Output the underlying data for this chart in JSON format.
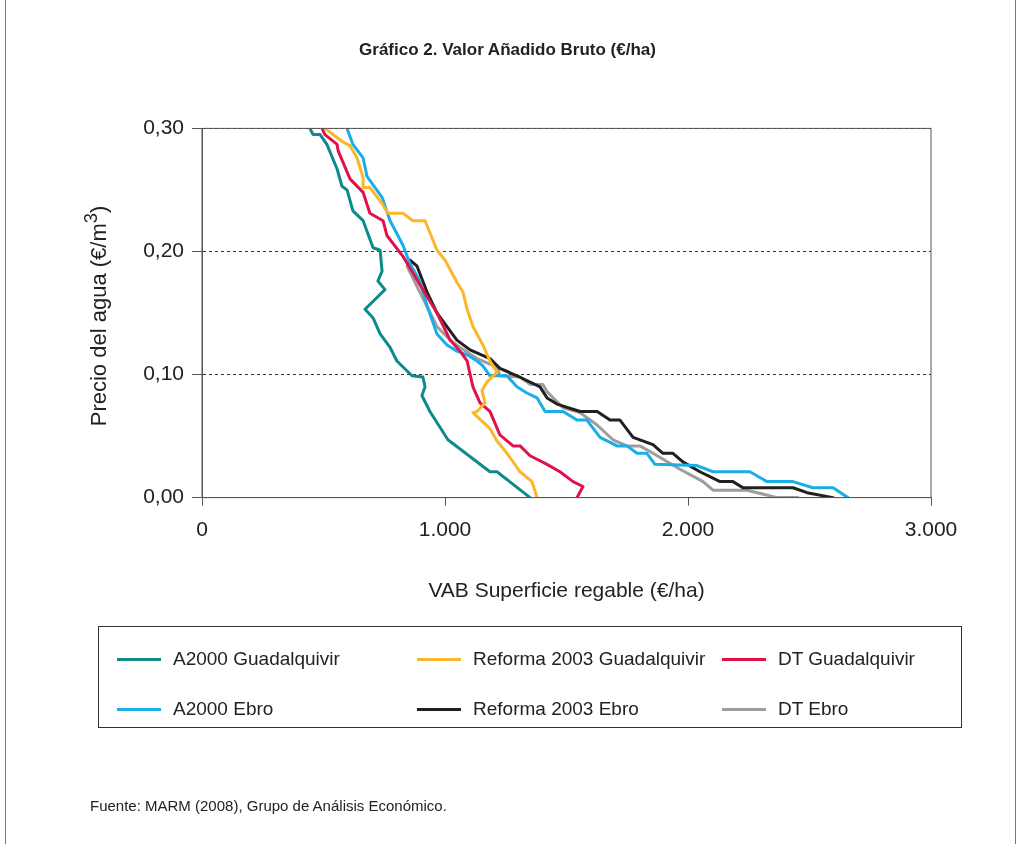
{
  "chart_data": {
    "type": "line",
    "title": "Gráfico 2. Valor Añadido Bruto (€/ha)",
    "xlabel": "VAB Superficie regable (€/ha)",
    "ylabel": "Precio del agua (€/m$^{3}$)",
    "xlim": [
      0,
      3000
    ],
    "xticks": [
      {
        "value": 0,
        "label": "0"
      },
      {
        "value": 1000,
        "label": "1.000"
      },
      {
        "value": 2000,
        "label": "2.000"
      },
      {
        "value": 3000,
        "label": "3.000"
      }
    ],
    "ylim": [
      0,
      0.3
    ],
    "yticks": [
      {
        "value": 0,
        "label": "0,00"
      },
      {
        "value": 0.1,
        "label": "0,10"
      },
      {
        "value": 0.2,
        "label": "0,20"
      },
      {
        "value": 0.3,
        "label": "0,30"
      }
    ],
    "grid": "y",
    "legend": "bottom",
    "marker": "none",
    "annotations": [
      "Fuente: MARM (2008), Grupo de Análisis Económico."
    ],
    "series": [
      {
        "name": "A2000 Guadalquivir",
        "color": "#0e8a8c",
        "x": [
          444,
          457,
          486,
          514,
          556,
          576,
          597,
          621,
          663,
          704,
          733,
          741,
          724,
          753,
          671,
          704,
          733,
          774,
          802,
          864,
          909,
          918,
          905,
          938,
          1012,
          1185,
          1214,
          1350
        ],
        "values": [
          0.3,
          0.295,
          0.295,
          0.287,
          0.267,
          0.253,
          0.25,
          0.233,
          0.225,
          0.203,
          0.201,
          0.184,
          0.176,
          0.169,
          0.153,
          0.146,
          0.133,
          0.122,
          0.111,
          0.099,
          0.098,
          0.09,
          0.083,
          0.07,
          0.047,
          0.021,
          0.021,
          0
        ]
      },
      {
        "name": "Reforma 2003 Guadalquivir",
        "color": "#fbb62c",
        "x": [
          506,
          539,
          580,
          609,
          638,
          663,
          663,
          691,
          741,
          765,
          827,
          868,
          918,
          967,
          1000,
          1049,
          1074,
          1091,
          1115,
          1156,
          1185,
          1214,
          1173,
          1152,
          1165,
          1132,
          1115,
          1185,
          1214,
          1255,
          1309,
          1358,
          1379
        ],
        "values": [
          0.3,
          0.295,
          0.289,
          0.286,
          0.276,
          0.26,
          0.252,
          0.252,
          0.239,
          0.231,
          0.231,
          0.225,
          0.225,
          0.201,
          0.193,
          0.175,
          0.167,
          0.153,
          0.139,
          0.124,
          0.111,
          0.102,
          0.094,
          0.087,
          0.077,
          0.07,
          0.069,
          0.056,
          0.046,
          0.036,
          0.021,
          0.013,
          0
        ]
      },
      {
        "name": "DT Guadalquivir",
        "color": "#e0124b",
        "x": [
          494,
          506,
          556,
          560,
          609,
          663,
          691,
          745,
          761,
          827,
          897,
          967,
          1021,
          1062,
          1091,
          1115,
          1144,
          1185,
          1226,
          1280,
          1309,
          1350,
          1420,
          1473,
          1527,
          1568,
          1543
        ],
        "values": [
          0.3,
          0.295,
          0.287,
          0.282,
          0.259,
          0.248,
          0.231,
          0.225,
          0.213,
          0.196,
          0.173,
          0.15,
          0.128,
          0.119,
          0.111,
          0.09,
          0.077,
          0.07,
          0.051,
          0.042,
          0.042,
          0.034,
          0.027,
          0.021,
          0.013,
          0.009,
          0
        ]
      },
      {
        "name": "A2000 Ebro",
        "color": "#1aaee8",
        "x": [
          597,
          621,
          663,
          679,
          741,
          774,
          827,
          856,
          897,
          926,
          967,
          1008,
          1049,
          1091,
          1132,
          1156,
          1185,
          1255,
          1296,
          1337,
          1379,
          1412,
          1486,
          1543,
          1584,
          1638,
          1708,
          1749,
          1790,
          1831,
          1864,
          2037,
          2103,
          2255,
          2325,
          2432,
          2514,
          2597,
          2658
        ],
        "values": [
          0.3,
          0.287,
          0.276,
          0.261,
          0.244,
          0.225,
          0.205,
          0.19,
          0.176,
          0.156,
          0.133,
          0.124,
          0.119,
          0.116,
          0.111,
          0.107,
          0.099,
          0.099,
          0.09,
          0.085,
          0.081,
          0.07,
          0.07,
          0.063,
          0.063,
          0.049,
          0.042,
          0.042,
          0.036,
          0.036,
          0.027,
          0.026,
          0.021,
          0.021,
          0.013,
          0.013,
          0.008,
          0.008,
          0
        ]
      },
      {
        "name": "Reforma 2003 Ebro",
        "color": "#231f20",
        "x": [
          856,
          885,
          926,
          967,
          1008,
          1049,
          1103,
          1185,
          1226,
          1296,
          1391,
          1420,
          1461,
          1556,
          1626,
          1679,
          1720,
          1774,
          1856,
          1897,
          1938,
          1979,
          2049,
          2132,
          2185,
          2226,
          2432,
          2490,
          2597
        ],
        "values": [
          0.193,
          0.188,
          0.167,
          0.15,
          0.139,
          0.128,
          0.12,
          0.113,
          0.105,
          0.099,
          0.09,
          0.081,
          0.076,
          0.07,
          0.07,
          0.063,
          0.063,
          0.049,
          0.043,
          0.036,
          0.036,
          0.029,
          0.021,
          0.013,
          0.013,
          0.008,
          0.008,
          0.004,
          0
        ]
      },
      {
        "name": "DT Ebro",
        "color": "#9d9d9d",
        "x": [
          844,
          909,
          967,
          1021,
          1062,
          1132,
          1214,
          1226,
          1309,
          1350,
          1403,
          1420,
          1486,
          1556,
          1626,
          1691,
          1749,
          1802,
          1856,
          1967,
          2062,
          2103,
          2243,
          2366,
          2453
        ],
        "values": [
          0.188,
          0.162,
          0.139,
          0.128,
          0.122,
          0.113,
          0.106,
          0.099,
          0.098,
          0.092,
          0.092,
          0.086,
          0.073,
          0.069,
          0.059,
          0.047,
          0.042,
          0.042,
          0.036,
          0.023,
          0.013,
          0.006,
          0.006,
          0,
          0
        ]
      }
    ]
  }
}
